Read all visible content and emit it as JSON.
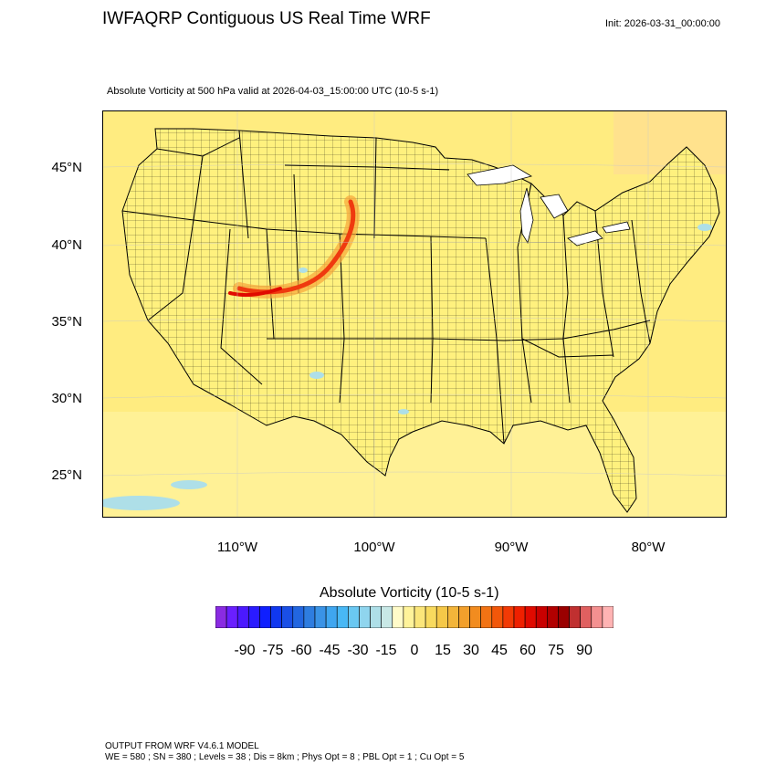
{
  "header": {
    "title": "IWFAQRP Contiguous US Real Time WRF",
    "init": "Init: 2026-03-31_00:00:00",
    "subtitle": "Absolute Vorticity at 500 hPa valid at 2026-04-03_15:00:00 UTC   (10-5 s-1)"
  },
  "map": {
    "lat_labels": [
      "45°N",
      "40°N",
      "35°N",
      "30°N",
      "25°N"
    ],
    "lon_labels": [
      "110°W",
      "100°W",
      "90°W",
      "80°W"
    ],
    "background_color": "#fff07a"
  },
  "legend": {
    "title": "Absolute Vorticity  (10-5 s-1)",
    "tick_labels": [
      "-90",
      "-75",
      "-60",
      "-45",
      "-30",
      "-15",
      "0",
      "15",
      "30",
      "45",
      "60",
      "75",
      "90"
    ],
    "colors": [
      "#8a2be2",
      "#6a1fff",
      "#4b19ff",
      "#2a1bff",
      "#0f1fff",
      "#1038f0",
      "#1a4fe6",
      "#2266e0",
      "#2e7de0",
      "#3a93e6",
      "#3fa6f0",
      "#48b8f5",
      "#6ac8f2",
      "#8fd5ee",
      "#aedfe8",
      "#c8e8e6",
      "#fffbc9",
      "#fff39a",
      "#fbe67a",
      "#f8da5e",
      "#f5c848",
      "#f3b53a",
      "#f2a02c",
      "#f28c1f",
      "#f27314",
      "#f2570a",
      "#f23a05",
      "#ef2000",
      "#e00a00",
      "#c90000",
      "#b20000",
      "#9a0000",
      "#c03030",
      "#e06060",
      "#f49090",
      "#ffb3b3"
    ]
  },
  "footer": {
    "line1": "OUTPUT FROM WRF V4.6.1 MODEL",
    "line2": "WE = 580 ; SN = 380 ; Levels = 38 ; Dis = 8km ; Phys Opt = 8 ; PBL Opt = 1 ; Cu Opt = 5"
  }
}
